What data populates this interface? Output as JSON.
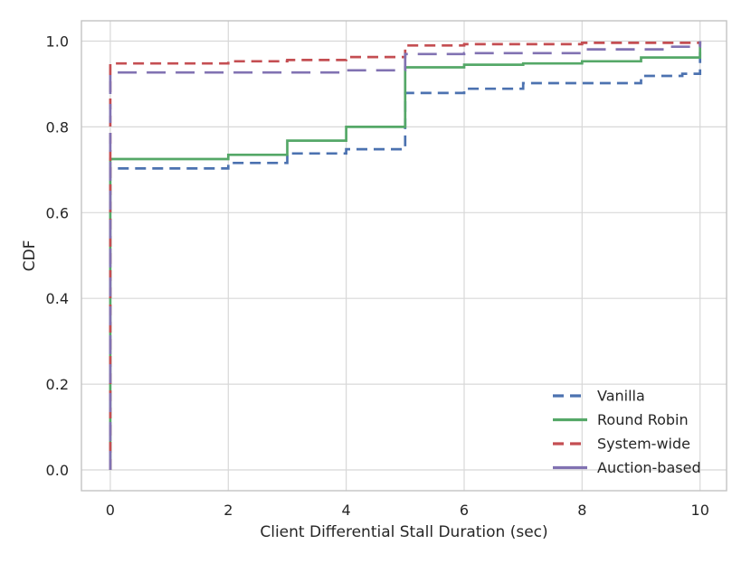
{
  "figure": {
    "background": "#ffffff",
    "text_color": "#262626",
    "axis_color": "#c3c3c3",
    "grid_color": "#d8d8d8"
  },
  "chart_data": {
    "type": "line",
    "variant": "step-cdf",
    "title": "",
    "xlabel": "Client Differential Stall Duration (sec)",
    "ylabel": "CDF",
    "xlim": [
      -0.49,
      10.45
    ],
    "ylim": [
      -0.0485,
      1.0475
    ],
    "xticks": [
      0,
      2,
      4,
      6,
      8,
      10
    ],
    "ytick_labels": [
      "0.0",
      "0.2",
      "0.4",
      "0.6",
      "0.8",
      "1.0"
    ],
    "grid": true,
    "legend_position": "lower-right",
    "series": [
      {
        "name": "Vanilla",
        "color": "#4C72B0",
        "style": "dashed",
        "dash": "12 7",
        "legend_dash": "12 7",
        "steps": [
          [
            0,
            0
          ],
          [
            0,
            0.703
          ],
          [
            2,
            0.716
          ],
          [
            3,
            0.738
          ],
          [
            4,
            0.748
          ],
          [
            5,
            0.879
          ],
          [
            6,
            0.889
          ],
          [
            7,
            0.902
          ],
          [
            9,
            0.919
          ],
          [
            9.7,
            0.924
          ],
          [
            10,
            1.0
          ]
        ]
      },
      {
        "name": "Round Robin",
        "color": "#55A868",
        "style": "solid",
        "dash": "",
        "legend_dash": "",
        "steps": [
          [
            0,
            0
          ],
          [
            0,
            0.725
          ],
          [
            2,
            0.735
          ],
          [
            3,
            0.768
          ],
          [
            4,
            0.8
          ],
          [
            5,
            0.939
          ],
          [
            6,
            0.945
          ],
          [
            7,
            0.948
          ],
          [
            8,
            0.953
          ],
          [
            9,
            0.962
          ],
          [
            10,
            1.0
          ]
        ]
      },
      {
        "name": "System-wide",
        "color": "#C44E52",
        "style": "dashed",
        "dash": "12 7",
        "legend_dash": "12 7",
        "steps": [
          [
            0,
            0
          ],
          [
            0,
            0.948
          ],
          [
            2,
            0.953
          ],
          [
            3,
            0.956
          ],
          [
            4,
            0.963
          ],
          [
            5,
            0.99
          ],
          [
            6,
            0.993
          ],
          [
            8,
            0.996
          ],
          [
            10,
            1.0
          ]
        ]
      },
      {
        "name": "Auction-based",
        "color": "#8172B2",
        "style": "long-dash",
        "dash": "21 11",
        "legend_dash": "38 10",
        "steps": [
          [
            0,
            0
          ],
          [
            0,
            0.927
          ],
          [
            4,
            0.932
          ],
          [
            5,
            0.97
          ],
          [
            6,
            0.972
          ],
          [
            8,
            0.981
          ],
          [
            9.5,
            0.987
          ],
          [
            10,
            1.0
          ]
        ]
      }
    ]
  }
}
